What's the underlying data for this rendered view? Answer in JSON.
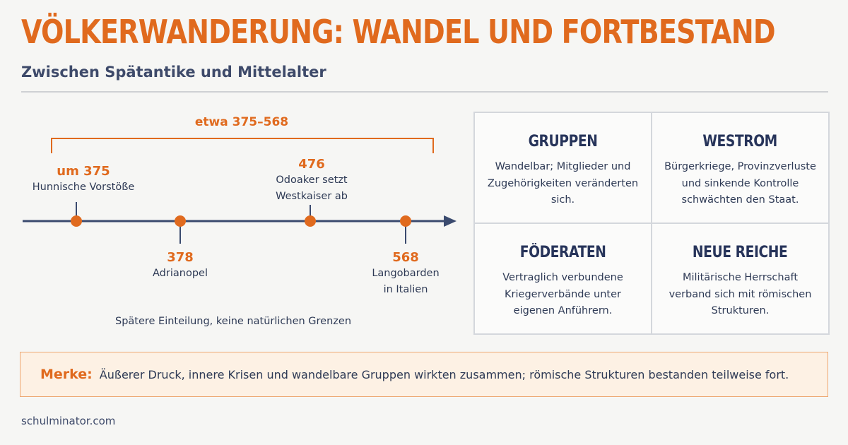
{
  "header": {
    "title": "VÖLKERWANDERUNG: WANDEL UND FORTBESTAND",
    "subtitle": "Zwischen Spätantike und Mittelalter"
  },
  "timeline": {
    "range_label": "etwa 375–568",
    "events": [
      {
        "year": "um 375",
        "desc": "Hunnische Vorstöße"
      },
      {
        "year": "378",
        "desc": "Adrianopel"
      },
      {
        "year": "476",
        "desc": "Odoaker setzt\nWestkaiser ab"
      },
      {
        "year": "568",
        "desc": "Langobarden\nin Italien"
      }
    ],
    "note": "Spätere Einteilung, keine natürlichen Grenzen"
  },
  "cells": [
    {
      "title": "GRUPPEN",
      "text": "Wandelbar; Mitglieder und\nZugehörigkeiten veränderten sich."
    },
    {
      "title": "WESTROM",
      "text": "Bürgerkriege, Provinzverluste\nund sinkende Kontrolle\nschwächten den Staat."
    },
    {
      "title": "FÖDERATEN",
      "text": "Vertraglich verbundene\nKriegerverbände unter\neigenen Anführern."
    },
    {
      "title": "NEUE REICHE",
      "text": "Militärische Herrschaft\nverband sich mit römischen\nStrukturen."
    }
  ],
  "merke": {
    "label": "Merke:",
    "text": "Äußerer Druck, innere Krisen und wandelbare Gruppen wirkten zusammen; römische Strukturen bestanden teilweise fort."
  },
  "footer": {
    "site": "schulminator.com"
  },
  "colors": {
    "accent": "#e06a1e",
    "navy": "#2e3a55",
    "axis": "#3a4a6e"
  }
}
